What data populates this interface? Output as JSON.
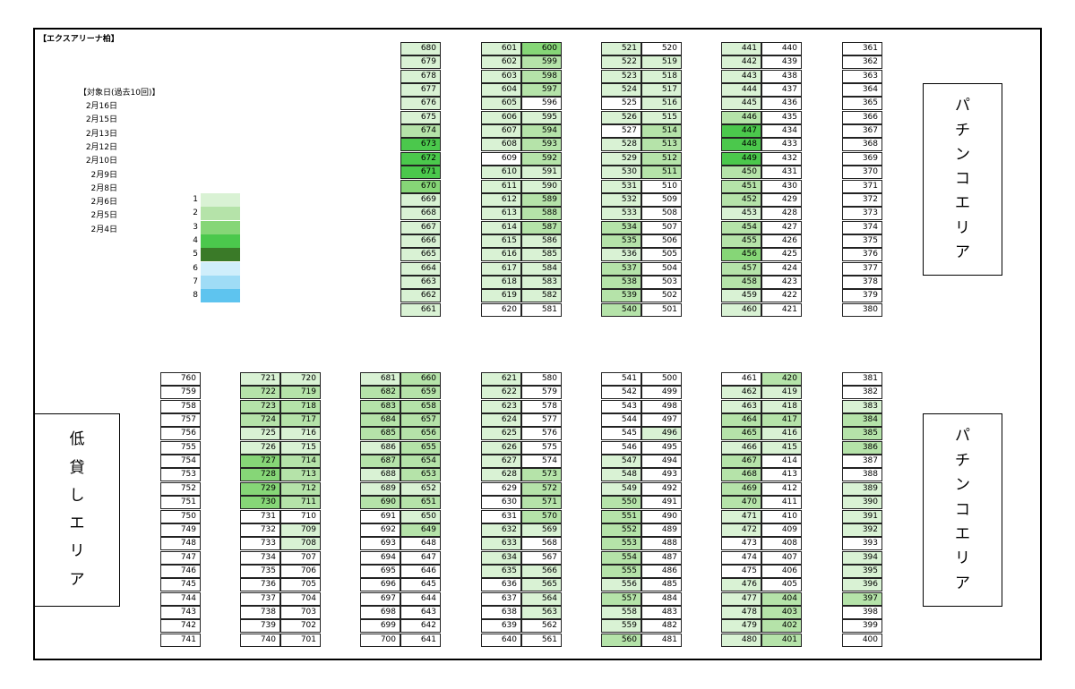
{
  "title": "【エクスアリーナ柏】",
  "legend": {
    "title": "【対象日(過去10回)】",
    "dates": [
      "2月16日",
      "2月15日",
      "2月13日",
      "2月12日",
      "2月10日",
      "2月9日",
      "2月8日",
      "2月6日",
      "2月5日",
      "2月4日"
    ],
    "levels": [
      {
        "label": "1",
        "color": "#d9f2d4"
      },
      {
        "label": "2",
        "color": "#b5e3a9"
      },
      {
        "label": "3",
        "color": "#86d677"
      },
      {
        "label": "4",
        "color": "#4bc84c"
      },
      {
        "label": "5",
        "color": "#3a7a28"
      },
      {
        "label": "6",
        "color": "#cfeefb"
      },
      {
        "label": "7",
        "color": "#9fdcf6"
      },
      {
        "label": "8",
        "color": "#5ec4ef"
      }
    ]
  },
  "areas": {
    "pachinko_top": [
      "パ",
      "チ",
      "ン",
      "コ",
      "エ",
      "リ",
      "ア"
    ],
    "pachinko_bottom": [
      "パ",
      "チ",
      "ン",
      "コ",
      "エ",
      "リ",
      "ア"
    ],
    "low_lending": [
      "低",
      "貸",
      "し",
      "エ",
      "リ",
      "ア"
    ]
  },
  "columns": [
    {
      "id": "c680",
      "start": 680,
      "step": -1,
      "count": 20,
      "levels": [
        1,
        1,
        1,
        1,
        1,
        1,
        2,
        4,
        4,
        4,
        3,
        1,
        1,
        1,
        1,
        1,
        1,
        1,
        1,
        1
      ]
    },
    {
      "id": "c601",
      "start": 601,
      "step": 1,
      "count": 20,
      "levels": [
        1,
        1,
        1,
        1,
        1,
        1,
        1,
        1,
        0,
        1,
        1,
        1,
        1,
        1,
        1,
        1,
        1,
        1,
        1,
        0
      ]
    },
    {
      "id": "c600",
      "start": 600,
      "step": -1,
      "count": 20,
      "levels": [
        3,
        2,
        2,
        2,
        0,
        1,
        2,
        2,
        2,
        1,
        1,
        2,
        2,
        2,
        1,
        1,
        1,
        1,
        1,
        0
      ]
    },
    {
      "id": "c521",
      "start": 521,
      "step": 1,
      "count": 20,
      "levels": [
        1,
        1,
        1,
        1,
        0,
        1,
        0,
        1,
        1,
        1,
        1,
        1,
        1,
        2,
        2,
        1,
        2,
        2,
        2,
        2
      ]
    },
    {
      "id": "c520",
      "start": 520,
      "step": -1,
      "count": 20,
      "levels": [
        0,
        1,
        1,
        1,
        1,
        1,
        2,
        2,
        2,
        2,
        0,
        0,
        0,
        0,
        0,
        0,
        0,
        0,
        0,
        0
      ]
    },
    {
      "id": "c441",
      "start": 441,
      "step": 1,
      "count": 20,
      "levels": [
        1,
        1,
        1,
        1,
        1,
        2,
        4,
        4,
        4,
        2,
        2,
        2,
        1,
        2,
        2,
        3,
        2,
        2,
        1,
        1
      ]
    },
    {
      "id": "c440",
      "start": 440,
      "step": -1,
      "count": 20,
      "levels": [
        0,
        0,
        0,
        0,
        0,
        0,
        0,
        0,
        0,
        0,
        0,
        0,
        0,
        0,
        0,
        0,
        0,
        0,
        0,
        0
      ]
    },
    {
      "id": "c361",
      "start": 361,
      "step": 1,
      "count": 20,
      "labels": [
        361,
        362,
        363,
        364,
        365,
        366,
        367,
        368,
        369,
        370,
        371,
        372,
        373,
        374,
        375,
        376,
        377,
        378,
        379,
        380
      ],
      "levels": [
        0,
        0,
        0,
        0,
        0,
        0,
        0,
        0,
        0,
        0,
        0,
        0,
        0,
        0,
        0,
        0,
        0,
        0,
        0,
        0
      ]
    },
    {
      "id": "c760",
      "start": 760,
      "step": -1,
      "count": 20,
      "levels": [
        0,
        0,
        0,
        0,
        0,
        0,
        0,
        0,
        0,
        0,
        0,
        0,
        0,
        0,
        0,
        0,
        0,
        0,
        0,
        0
      ]
    },
    {
      "id": "c721",
      "start": 721,
      "step": 1,
      "count": 20,
      "levels": [
        1,
        2,
        2,
        2,
        1,
        1,
        3,
        3,
        3,
        3,
        0,
        0,
        0,
        0,
        0,
        0,
        0,
        0,
        0,
        0
      ]
    },
    {
      "id": "c720",
      "start": 720,
      "step": -1,
      "count": 20,
      "levels": [
        1,
        2,
        2,
        2,
        1,
        1,
        2,
        2,
        2,
        2,
        0,
        1,
        1,
        0,
        0,
        0,
        0,
        0,
        0,
        0
      ]
    },
    {
      "id": "c681",
      "start": 681,
      "step": 1,
      "count": 20,
      "levels": [
        1,
        2,
        2,
        2,
        2,
        1,
        2,
        1,
        1,
        2,
        0,
        0,
        0,
        0,
        0,
        0,
        0,
        0,
        0,
        0
      ]
    },
    {
      "id": "c660",
      "start": 660,
      "step": -1,
      "count": 20,
      "levels": [
        2,
        2,
        2,
        2,
        2,
        2,
        2,
        2,
        1,
        2,
        1,
        2,
        0,
        0,
        0,
        0,
        0,
        0,
        0,
        0
      ]
    },
    {
      "id": "c621",
      "start": 621,
      "step": 1,
      "count": 20,
      "levels": [
        1,
        1,
        1,
        1,
        1,
        1,
        1,
        1,
        0,
        0,
        0,
        1,
        1,
        1,
        1,
        0,
        0,
        0,
        0,
        0
      ]
    },
    {
      "id": "c580",
      "start": 580,
      "step": -1,
      "count": 20,
      "levels": [
        0,
        0,
        0,
        0,
        0,
        0,
        0,
        2,
        2,
        2,
        2,
        1,
        0,
        0,
        1,
        1,
        1,
        1,
        0,
        0
      ]
    },
    {
      "id": "c541",
      "start": 541,
      "step": 1,
      "count": 20,
      "levels": [
        0,
        0,
        0,
        0,
        0,
        0,
        1,
        1,
        1,
        2,
        2,
        2,
        2,
        2,
        2,
        1,
        2,
        1,
        1,
        2
      ]
    },
    {
      "id": "c500",
      "start": 500,
      "step": -1,
      "count": 20,
      "levels": [
        0,
        0,
        0,
        0,
        1,
        0,
        0,
        0,
        0,
        0,
        0,
        0,
        0,
        0,
        0,
        0,
        0,
        0,
        0,
        0
      ]
    },
    {
      "id": "c461",
      "start": 461,
      "step": 1,
      "count": 20,
      "levels": [
        0,
        1,
        1,
        2,
        2,
        1,
        2,
        2,
        2,
        2,
        1,
        1,
        0,
        0,
        0,
        1,
        1,
        1,
        1,
        1
      ]
    },
    {
      "id": "c420",
      "start": 420,
      "step": -1,
      "count": 20,
      "levels": [
        2,
        1,
        1,
        2,
        1,
        1,
        0,
        0,
        0,
        0,
        0,
        0,
        0,
        0,
        0,
        0,
        2,
        2,
        2,
        2
      ]
    },
    {
      "id": "c381",
      "start": 381,
      "step": 1,
      "count": 20,
      "levels": [
        0,
        0,
        1,
        2,
        2,
        2,
        0,
        0,
        1,
        1,
        1,
        1,
        0,
        1,
        1,
        1,
        2,
        0,
        0,
        0
      ]
    }
  ]
}
